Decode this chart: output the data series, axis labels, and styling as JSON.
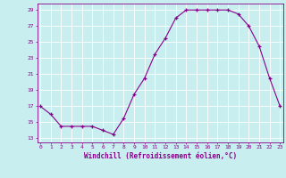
{
  "x": [
    0,
    1,
    2,
    3,
    4,
    5,
    6,
    7,
    8,
    9,
    10,
    11,
    12,
    13,
    14,
    15,
    16,
    17,
    18,
    19,
    20,
    21,
    22,
    23
  ],
  "y": [
    17,
    16,
    14.5,
    14.5,
    14.5,
    14.5,
    14,
    13.5,
    15.5,
    18.5,
    20.5,
    23.5,
    25.5,
    28,
    29,
    29,
    29,
    29,
    29,
    28.5,
    27,
    24.5,
    20.5,
    17
  ],
  "line_color": "#880088",
  "marker": "+",
  "xlabel": "Windchill (Refroidissement éolien,°C)",
  "xlim_min": -0.3,
  "xlim_max": 23.3,
  "ylim_min": 12.5,
  "ylim_max": 29.8,
  "yticks": [
    13,
    15,
    17,
    19,
    21,
    23,
    25,
    27,
    29
  ],
  "xticks": [
    0,
    1,
    2,
    3,
    4,
    5,
    6,
    7,
    8,
    9,
    10,
    11,
    12,
    13,
    14,
    15,
    16,
    17,
    18,
    19,
    20,
    21,
    22,
    23
  ],
  "background_color": "#c8eef0",
  "grid_color": "#ffffff",
  "line_and_text_color": "#880088"
}
